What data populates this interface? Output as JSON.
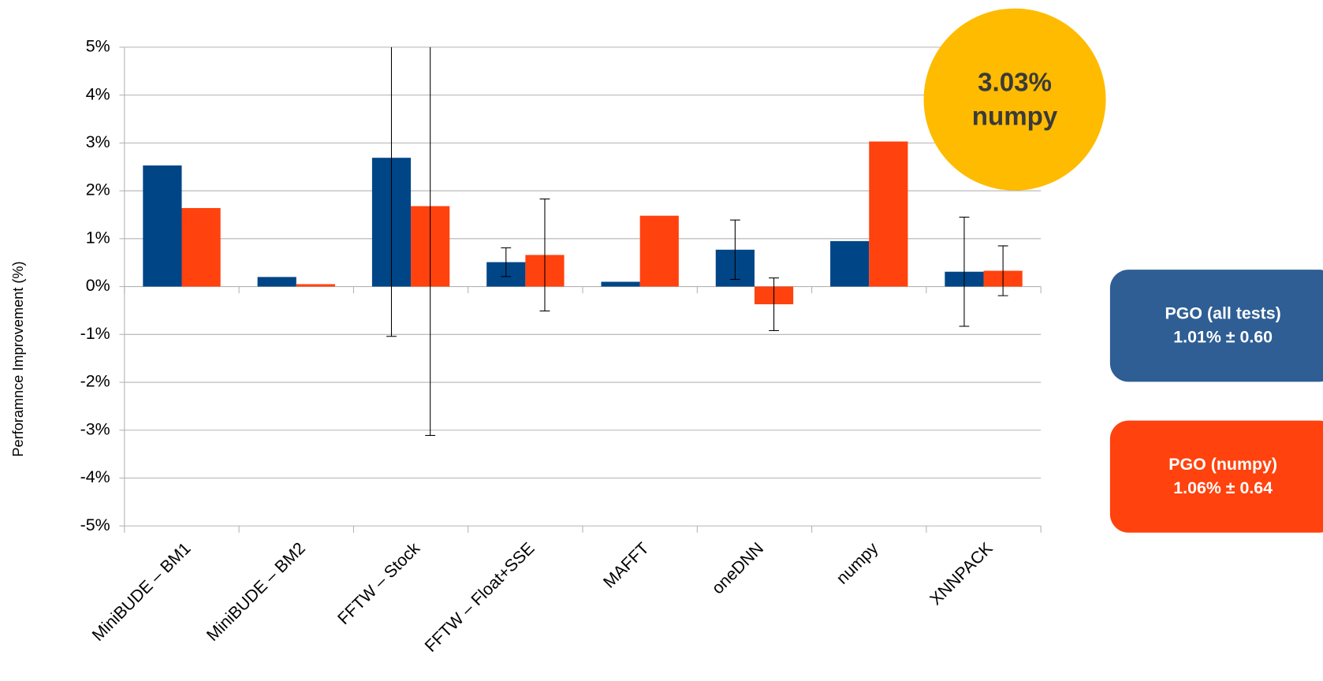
{
  "chart_data": {
    "type": "bar",
    "y_label": "Perforamnce Improvement (%)",
    "categories": [
      "MiniBUDE – BM1",
      "MiniBUDE – BM2",
      "FFTW – Stock",
      "FFTW – Float+SSE",
      "MAFFT",
      "oneDNN",
      "numpy",
      "XNNPACK"
    ],
    "series": [
      {
        "name": "PGO (all tests)",
        "color": "#004586",
        "values": [
          2.53,
          0.2,
          2.69,
          0.51,
          0.1,
          0.77,
          0.95,
          0.31
        ],
        "errors": [
          null,
          null,
          3.73,
          0.3,
          null,
          0.62,
          null,
          1.14
        ],
        "summary": "1.01% ± 0.60"
      },
      {
        "name": "PGO (numpy)",
        "color": "#ff420e",
        "values": [
          1.64,
          0.05,
          1.68,
          0.66,
          1.48,
          -0.37,
          3.03,
          0.33
        ],
        "errors": [
          null,
          null,
          4.79,
          1.17,
          null,
          0.55,
          null,
          0.52
        ],
        "summary": "1.06% ± 0.64"
      }
    ],
    "callout": {
      "value_label": "3.03%",
      "category": "numpy",
      "color": "#ffbb00"
    },
    "ylim": [
      -5,
      5
    ],
    "yticks": [
      {
        "value": -5,
        "label": "-5%"
      },
      {
        "value": -4,
        "label": "-4%"
      },
      {
        "value": -3,
        "label": "-3%"
      },
      {
        "value": -2,
        "label": "-2%"
      },
      {
        "value": -1,
        "label": "-1%"
      },
      {
        "value": 0,
        "label": "0%"
      },
      {
        "value": 1,
        "label": "1%"
      },
      {
        "value": 2,
        "label": "2%"
      },
      {
        "value": 3,
        "label": "3%"
      },
      {
        "value": 4,
        "label": "4%"
      },
      {
        "value": 5,
        "label": "5%"
      }
    ],
    "grid": true
  }
}
